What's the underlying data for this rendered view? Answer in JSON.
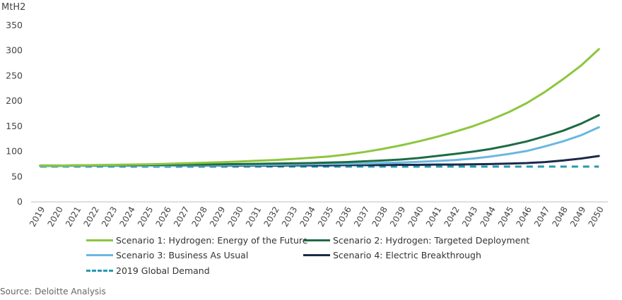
{
  "chart_data": {
    "type": "line",
    "y_unit_label": "MtH2",
    "ylim": [
      0,
      350
    ],
    "yticks": [
      0,
      50,
      100,
      150,
      200,
      250,
      300,
      350
    ],
    "grid": false,
    "legend_position": "bottom",
    "categories": [
      "2019",
      "2020",
      "2021",
      "2022",
      "2023",
      "2024",
      "2025",
      "2026",
      "2027",
      "2028",
      "2029",
      "2030",
      "2031",
      "2032",
      "2033",
      "2034",
      "2035",
      "2036",
      "2037",
      "2038",
      "2039",
      "2040",
      "2041",
      "2042",
      "2043",
      "2044",
      "2045",
      "2046",
      "2047",
      "2048",
      "2049",
      "2050"
    ],
    "series": [
      {
        "name": "Scenario 1: Hydrogen: Energy of the Future",
        "color": "#8cc63e",
        "dash": false,
        "values": [
          72,
          72,
          72.5,
          73,
          73.5,
          74,
          74.5,
          75.5,
          76.5,
          77.5,
          78.5,
          80,
          81.5,
          83,
          85,
          87.5,
          90,
          94,
          99,
          105,
          112,
          120,
          129,
          139,
          150,
          163,
          178,
          196,
          218,
          243,
          270,
          303
        ]
      },
      {
        "name": "Scenario 2: Hydrogen: Targeted Deployment",
        "color": "#1f6b45",
        "dash": false,
        "values": [
          72,
          72,
          72.5,
          72.5,
          73,
          73,
          73.5,
          73.5,
          74,
          74,
          74.5,
          75,
          75.5,
          76,
          76.5,
          77,
          78,
          79,
          80.5,
          82,
          84,
          87,
          91,
          95,
          99.5,
          105,
          112,
          120,
          130,
          141,
          155,
          172
        ]
      },
      {
        "name": "Scenario 3: Business As Usual",
        "color": "#6ab8e0",
        "dash": false,
        "values": [
          71,
          71,
          71.5,
          71.5,
          71.5,
          72,
          72,
          72,
          72.5,
          72.5,
          72.5,
          73,
          73,
          73.5,
          74,
          74.5,
          75,
          75.5,
          76,
          77,
          78,
          79.5,
          81,
          83,
          86,
          90,
          95,
          101,
          110,
          120,
          132,
          148
        ]
      },
      {
        "name": "Scenario 4: Electric Breakthrough",
        "color": "#1a2a4a",
        "dash": false,
        "values": [
          72,
          72,
          72,
          72,
          72,
          72,
          72,
          72,
          72,
          72,
          72,
          72,
          72,
          72,
          72.5,
          72.5,
          72.5,
          73,
          73,
          73,
          73.5,
          73.5,
          74,
          74,
          74.5,
          75,
          76,
          77,
          79,
          82,
          86,
          91
        ]
      },
      {
        "name": "2019 Global Demand",
        "color": "#2699b0",
        "dash": true,
        "values": [
          70,
          70,
          70,
          70,
          70,
          70,
          70,
          70,
          70,
          70,
          70,
          70,
          70,
          70,
          70,
          70,
          70,
          70,
          70,
          70,
          70,
          70,
          70,
          70,
          70,
          70,
          70,
          70,
          70,
          70,
          70,
          70
        ]
      }
    ]
  },
  "source": "Source: Deloitte Analysis"
}
